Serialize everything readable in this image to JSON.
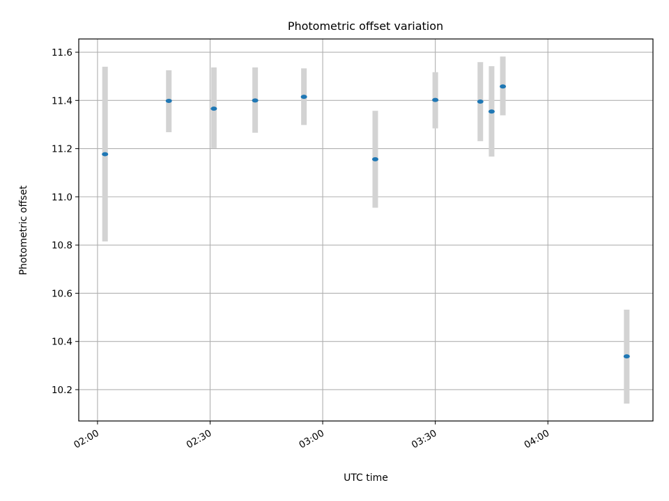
{
  "chart_data": {
    "type": "scatter",
    "title": "Photometric offset variation",
    "xlabel": "UTC time",
    "ylabel": "Photometric offset",
    "x_axis_type": "time",
    "xlim": [
      "01:55",
      "04:28"
    ],
    "ylim": [
      10.07,
      11.655
    ],
    "x_ticks": [
      "02:00",
      "02:30",
      "03:00",
      "03:30",
      "04:00"
    ],
    "y_ticks": [
      10.2,
      10.4,
      10.6,
      10.8,
      11.0,
      11.2,
      11.4,
      11.6
    ],
    "y_tick_labels": [
      "10.2",
      "10.4",
      "10.6",
      "10.8",
      "11.0",
      "11.2",
      "11.4",
      "11.6"
    ],
    "grid": true,
    "legend": "none",
    "points": [
      {
        "x": "02:02",
        "y": 11.177,
        "err_low": 10.815,
        "err_high": 11.54
      },
      {
        "x": "02:19",
        "y": 11.398,
        "err_low": 11.268,
        "err_high": 11.525
      },
      {
        "x": "02:31",
        "y": 11.366,
        "err_low": 11.202,
        "err_high": 11.537
      },
      {
        "x": "02:42",
        "y": 11.4,
        "err_low": 11.266,
        "err_high": 11.537
      },
      {
        "x": "02:55",
        "y": 11.415,
        "err_low": 11.298,
        "err_high": 11.533
      },
      {
        "x": "03:14",
        "y": 11.156,
        "err_low": 10.955,
        "err_high": 11.357
      },
      {
        "x": "03:30",
        "y": 11.402,
        "err_low": 11.284,
        "err_high": 11.517
      },
      {
        "x": "03:42",
        "y": 11.395,
        "err_low": 11.231,
        "err_high": 11.559
      },
      {
        "x": "03:45",
        "y": 11.354,
        "err_low": 11.167,
        "err_high": 11.542
      },
      {
        "x": "03:48",
        "y": 11.458,
        "err_low": 11.338,
        "err_high": 11.582
      },
      {
        "x": "04:21",
        "y": 10.338,
        "err_low": 10.142,
        "err_high": 10.532
      }
    ],
    "colors": {
      "marker": "#1f77b4",
      "errorbar": "#d3d3d3",
      "grid": "#b0b0b0",
      "axes": "#000000"
    }
  }
}
